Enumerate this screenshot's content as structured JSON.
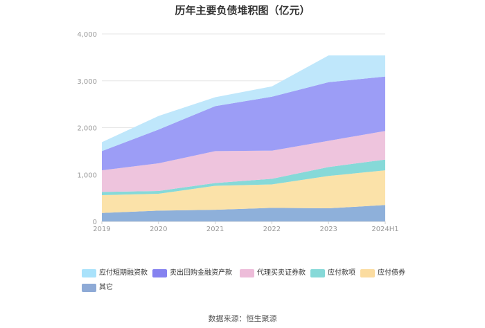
{
  "chart_data": {
    "type": "area",
    "stacked": true,
    "title": "历年主要负债堆积图（亿元）",
    "categories": [
      "2019",
      "2020",
      "2021",
      "2022",
      "2023",
      "2024H1"
    ],
    "ylim": [
      0,
      4000
    ],
    "yticks": [
      "0",
      "1,000",
      "2,000",
      "3,000",
      "4,000"
    ],
    "grid": true,
    "legend_position": "bottom",
    "series": [
      {
        "name": "其它",
        "color": "#8eb0da",
        "values": [
          180,
          230,
          250,
          290,
          280,
          350
        ]
      },
      {
        "name": "应付债券",
        "color": "#fbe2a9",
        "values": [
          380,
          360,
          510,
          500,
          690,
          740
        ]
      },
      {
        "name": "应付款项",
        "color": "#86d9d8",
        "values": [
          70,
          60,
          60,
          120,
          190,
          230
        ]
      },
      {
        "name": "代理买卖证券款",
        "color": "#eec4dd",
        "values": [
          460,
          590,
          680,
          600,
          560,
          610
        ]
      },
      {
        "name": "卖出回购金融资产款",
        "color": "#9c9df6",
        "values": [
          410,
          720,
          960,
          1150,
          1250,
          1160
        ]
      },
      {
        "name": "应付短期融资款",
        "color": "#bfe7fb",
        "values": [
          190,
          290,
          190,
          220,
          570,
          450
        ]
      }
    ]
  },
  "legend": [
    {
      "label": "应付短期融资款",
      "color": "#a9e2fb"
    },
    {
      "label": "卖出回购金融资产款",
      "color": "#8582f0"
    },
    {
      "label": "代理买卖证券款",
      "color": "#edbcd9"
    },
    {
      "label": "应付款项",
      "color": "#86d9d8"
    },
    {
      "label": "应付债券",
      "color": "#fbdca0"
    },
    {
      "label": "其它",
      "color": "#8eaad6"
    }
  ],
  "source": "数据来源：恒生聚源"
}
